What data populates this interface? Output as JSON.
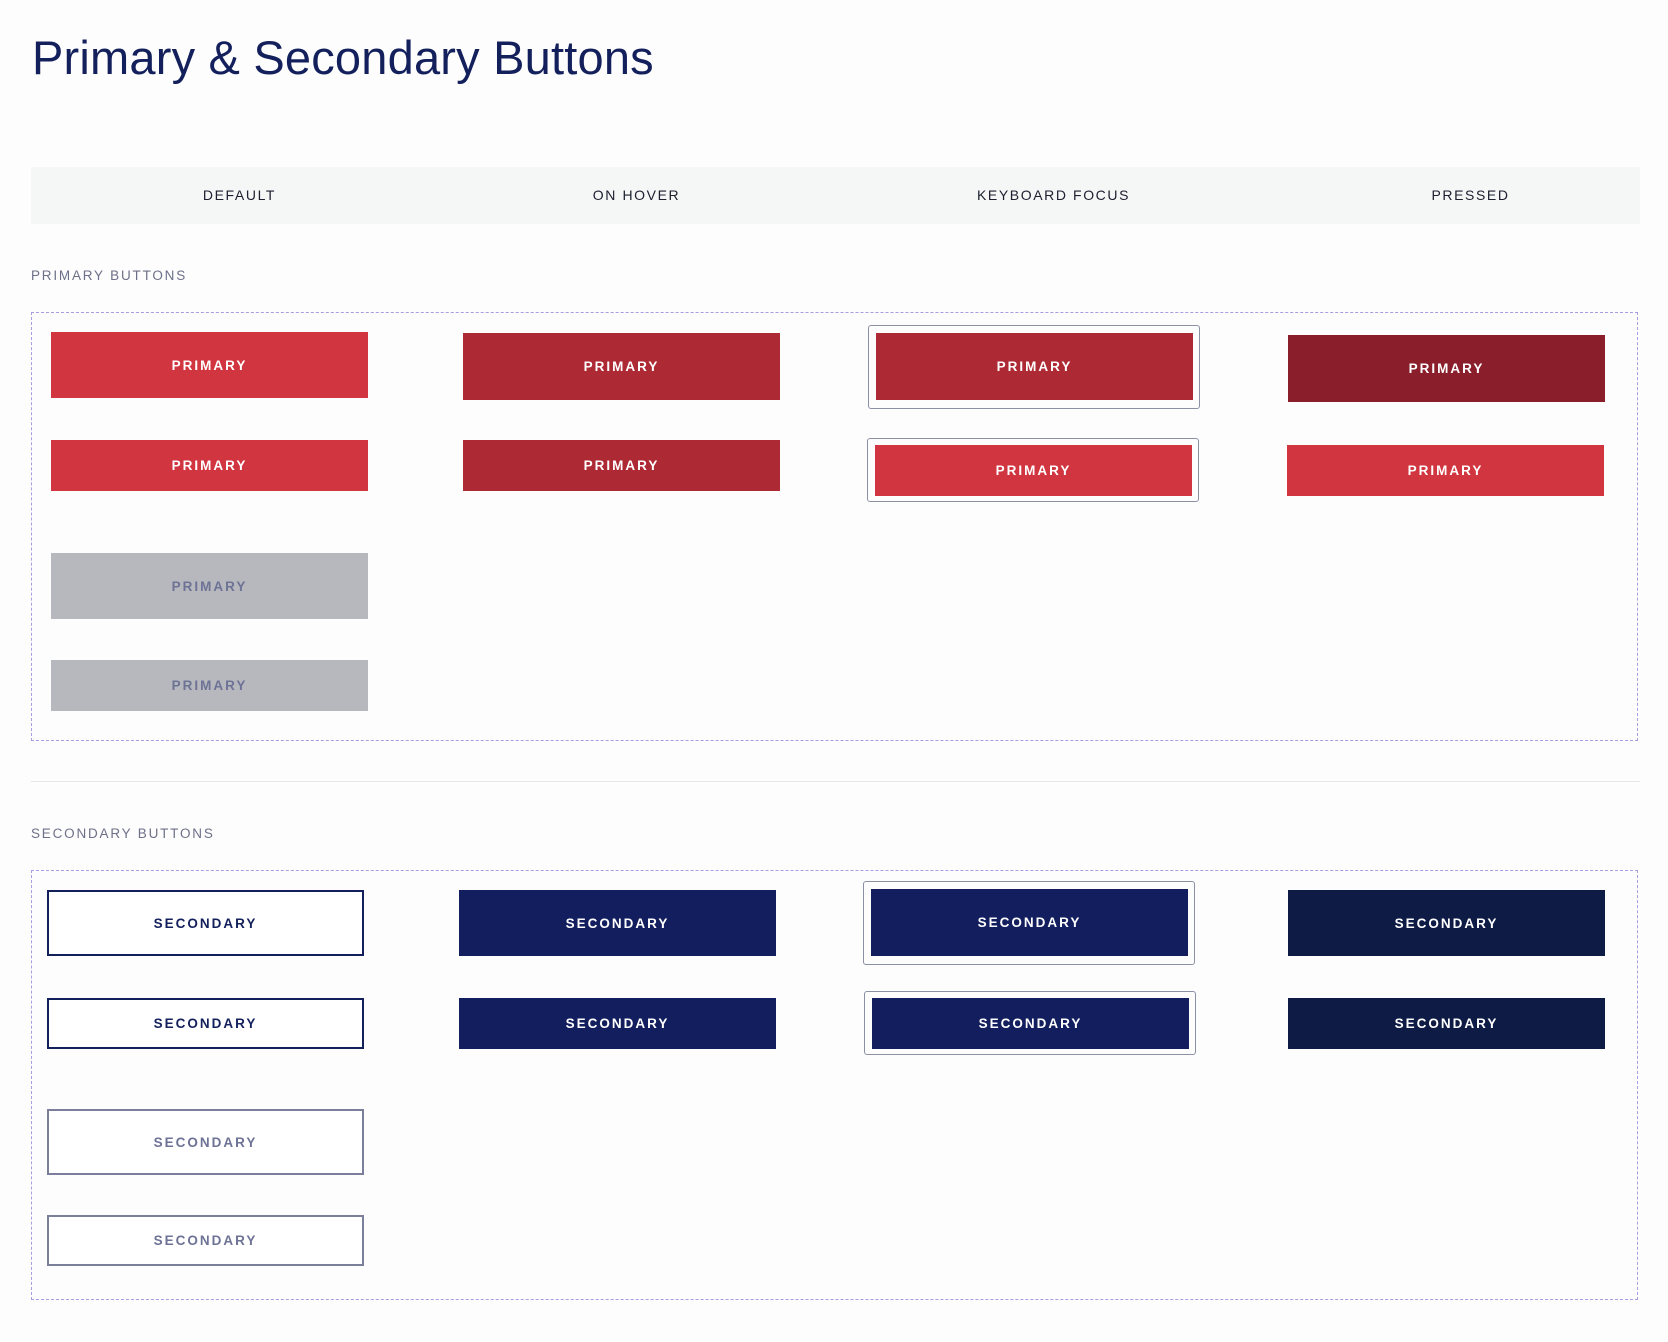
{
  "page": {
    "title": "Primary & Secondary Buttons"
  },
  "columns": [
    "DEFAULT",
    "ON HOVER",
    "KEYBOARD FOCUS",
    "PRESSED"
  ],
  "sections": {
    "primary": {
      "label": "PRIMARY BUTTONS",
      "button_label": "PRIMARY"
    },
    "secondary": {
      "label": "SECONDARY BUTTONS",
      "button_label": "SECONDARY"
    }
  },
  "colors": {
    "primary_default": "#d1353f",
    "primary_hover": "#ad2a35",
    "primary_pressed": "#8a1f2b",
    "primary_disabled": "#b6b8bd",
    "secondary_navy": "#13205c",
    "secondary_hover": "#121e5e",
    "secondary_pressed": "#0d1b45",
    "focus_ring": "#8c90a4",
    "dashed_border": "#a59ee0"
  }
}
